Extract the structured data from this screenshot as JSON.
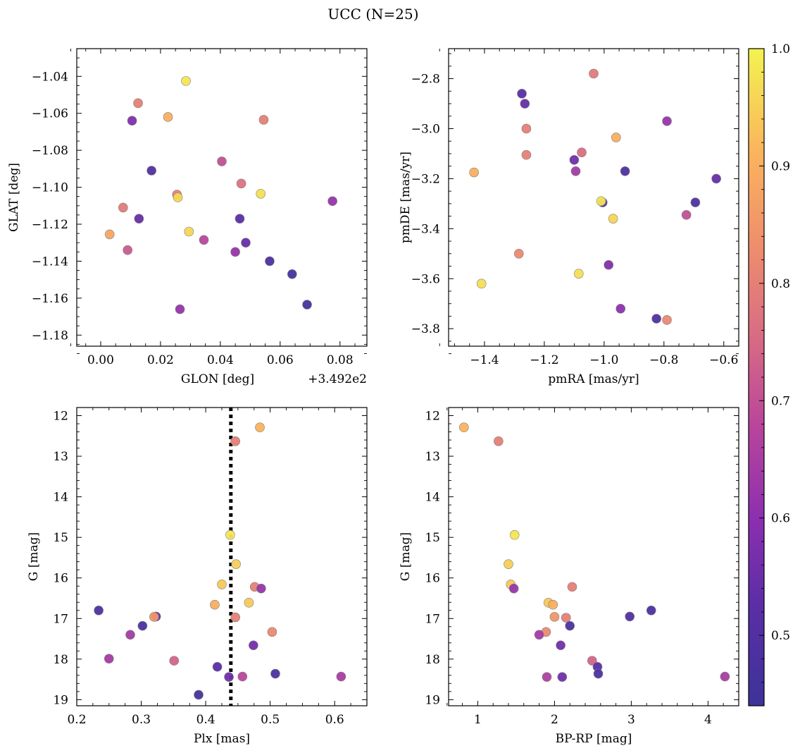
{
  "figure": {
    "title": "UCC (N=25)"
  },
  "colors": {
    "cmap_low": "#3d3399",
    "cmap_high": "#f3f350",
    "point_edge": "#7f7f7f",
    "dashed_line": "#000000"
  },
  "colorbar": {
    "min": 0.44,
    "max": 1.0,
    "ticks": [
      "0.5",
      "0.6",
      "0.7",
      "0.8",
      "0.9",
      "1.0"
    ],
    "tick_values": [
      0.5,
      0.6,
      0.7,
      0.8,
      0.9,
      1.0
    ]
  },
  "chart_data": [
    {
      "type": "scatter",
      "xlabel": "GLON [deg]",
      "ylabel": "GLAT [deg]",
      "offset_text": "+3.492e2",
      "xlim": [
        -0.008,
        0.089
      ],
      "ylim": [
        -1.186,
        -1.025
      ],
      "xticks": [
        0.0,
        0.02,
        0.04,
        0.06,
        0.08
      ],
      "xticklabels": [
        "0.00",
        "0.02",
        "0.04",
        "0.06",
        "0.08"
      ],
      "yticks": [
        -1.18,
        -1.16,
        -1.14,
        -1.12,
        -1.1,
        -1.08,
        -1.06,
        -1.04
      ],
      "yticklabels": [
        "−1.18",
        "−1.16",
        "−1.14",
        "−1.12",
        "−1.10",
        "−1.08",
        "−1.06",
        "−1.04"
      ],
      "points": [
        {
          "x": 0.0285,
          "y": -1.0425,
          "c": 0.98
        },
        {
          "x": 0.0125,
          "y": -1.0545,
          "c": 0.8
        },
        {
          "x": 0.0225,
          "y": -1.062,
          "c": 0.9
        },
        {
          "x": 0.0545,
          "y": -1.0635,
          "c": 0.8
        },
        {
          "x": 0.0105,
          "y": -1.064,
          "c": 0.58
        },
        {
          "x": 0.0405,
          "y": -1.086,
          "c": 0.7
        },
        {
          "x": 0.017,
          "y": -1.091,
          "c": 0.5
        },
        {
          "x": 0.047,
          "y": -1.098,
          "c": 0.77
        },
        {
          "x": 0.0535,
          "y": -1.1035,
          "c": 0.97
        },
        {
          "x": 0.0255,
          "y": -1.104,
          "c": 0.8
        },
        {
          "x": 0.0258,
          "y": -1.1055,
          "c": 0.96
        },
        {
          "x": 0.0775,
          "y": -1.1075,
          "c": 0.62
        },
        {
          "x": 0.0075,
          "y": -1.111,
          "c": 0.79
        },
        {
          "x": 0.0128,
          "y": -1.117,
          "c": 0.54
        },
        {
          "x": 0.0465,
          "y": -1.117,
          "c": 0.52
        },
        {
          "x": 0.0295,
          "y": -1.124,
          "c": 0.96
        },
        {
          "x": 0.003,
          "y": -1.1255,
          "c": 0.88
        },
        {
          "x": 0.0485,
          "y": -1.13,
          "c": 0.54
        },
        {
          "x": 0.0345,
          "y": -1.1285,
          "c": 0.68
        },
        {
          "x": 0.009,
          "y": -1.134,
          "c": 0.72
        },
        {
          "x": 0.045,
          "y": -1.135,
          "c": 0.62
        },
        {
          "x": 0.0565,
          "y": -1.14,
          "c": 0.48
        },
        {
          "x": 0.064,
          "y": -1.147,
          "c": 0.47
        },
        {
          "x": 0.069,
          "y": -1.1635,
          "c": 0.46
        },
        {
          "x": 0.0265,
          "y": -1.166,
          "c": 0.62
        }
      ]
    },
    {
      "type": "scatter",
      "xlabel": "pmRA [mas/yr]",
      "ylabel": "pmDE [mas/yr]",
      "xlim": [
        -1.52,
        -0.55
      ],
      "ylim": [
        -3.87,
        -2.68
      ],
      "xticks": [
        -1.4,
        -1.2,
        -1.0,
        -0.8,
        -0.6
      ],
      "xticklabels": [
        "−1.4",
        "−1.2",
        "−1.0",
        "−0.8",
        "−0.6"
      ],
      "yticks": [
        -3.8,
        -3.6,
        -3.4,
        -3.2,
        -3.0,
        -2.8
      ],
      "yticklabels": [
        "−3.8",
        "−3.6",
        "−3.4",
        "−3.2",
        "−3.0",
        "−2.8"
      ],
      "points": [
        {
          "x": -1.035,
          "y": -2.78,
          "c": 0.79
        },
        {
          "x": -1.275,
          "y": -2.86,
          "c": 0.52
        },
        {
          "x": -1.265,
          "y": -2.9,
          "c": 0.54
        },
        {
          "x": -0.79,
          "y": -2.97,
          "c": 0.62
        },
        {
          "x": -1.26,
          "y": -3.0,
          "c": 0.8
        },
        {
          "x": -0.96,
          "y": -3.035,
          "c": 0.9
        },
        {
          "x": -1.075,
          "y": -3.095,
          "c": 0.76
        },
        {
          "x": -1.26,
          "y": -3.105,
          "c": 0.8
        },
        {
          "x": -1.1,
          "y": -3.125,
          "c": 0.56
        },
        {
          "x": -1.095,
          "y": -3.17,
          "c": 0.64
        },
        {
          "x": -0.93,
          "y": -3.17,
          "c": 0.49
        },
        {
          "x": -1.435,
          "y": -3.175,
          "c": 0.9
        },
        {
          "x": -0.625,
          "y": -3.2,
          "c": 0.54
        },
        {
          "x": -1.005,
          "y": -3.295,
          "c": 0.48
        },
        {
          "x": -1.01,
          "y": -3.29,
          "c": 0.98
        },
        {
          "x": -0.695,
          "y": -3.295,
          "c": 0.49
        },
        {
          "x": -0.725,
          "y": -3.345,
          "c": 0.7
        },
        {
          "x": -0.97,
          "y": -3.36,
          "c": 0.96
        },
        {
          "x": -1.285,
          "y": -3.5,
          "c": 0.82
        },
        {
          "x": -0.985,
          "y": -3.545,
          "c": 0.58
        },
        {
          "x": -1.085,
          "y": -3.58,
          "c": 0.97
        },
        {
          "x": -1.41,
          "y": -3.62,
          "c": 0.97
        },
        {
          "x": -0.945,
          "y": -3.72,
          "c": 0.6
        },
        {
          "x": -0.825,
          "y": -3.76,
          "c": 0.5
        },
        {
          "x": -0.79,
          "y": -3.765,
          "c": 0.82
        }
      ]
    },
    {
      "type": "scatter",
      "xlabel": "Plx [mas]",
      "ylabel": "G [mag]",
      "xlim": [
        0.2,
        0.65
      ],
      "ylim": [
        19.15,
        11.8
      ],
      "xticks": [
        0.2,
        0.3,
        0.4,
        0.5,
        0.6
      ],
      "xticklabels": [
        "0.2",
        "0.3",
        "0.4",
        "0.5",
        "0.6"
      ],
      "yticks": [
        12,
        13,
        14,
        15,
        16,
        17,
        18,
        19
      ],
      "yticklabels": [
        "12",
        "13",
        "14",
        "15",
        "16",
        "17",
        "18",
        "19"
      ],
      "vline_x": 0.439,
      "points": [
        {
          "x": 0.484,
          "y": 12.29,
          "c": 0.91
        },
        {
          "x": 0.446,
          "y": 12.63,
          "c": 0.8
        },
        {
          "x": 0.438,
          "y": 14.94,
          "c": 0.98
        },
        {
          "x": 0.447,
          "y": 15.66,
          "c": 0.95
        },
        {
          "x": 0.425,
          "y": 16.16,
          "c": 0.94
        },
        {
          "x": 0.476,
          "y": 16.22,
          "c": 0.8
        },
        {
          "x": 0.486,
          "y": 16.26,
          "c": 0.62
        },
        {
          "x": 0.467,
          "y": 16.61,
          "c": 0.94
        },
        {
          "x": 0.414,
          "y": 16.66,
          "c": 0.9
        },
        {
          "x": 0.234,
          "y": 16.8,
          "c": 0.48
        },
        {
          "x": 0.323,
          "y": 16.95,
          "c": 0.54
        },
        {
          "x": 0.32,
          "y": 16.96,
          "c": 0.85
        },
        {
          "x": 0.446,
          "y": 16.97,
          "c": 0.8
        },
        {
          "x": 0.302,
          "y": 17.18,
          "c": 0.48
        },
        {
          "x": 0.503,
          "y": 17.33,
          "c": 0.82
        },
        {
          "x": 0.283,
          "y": 17.4,
          "c": 0.64
        },
        {
          "x": 0.474,
          "y": 17.66,
          "c": 0.56
        },
        {
          "x": 0.25,
          "y": 17.99,
          "c": 0.64
        },
        {
          "x": 0.351,
          "y": 18.04,
          "c": 0.74
        },
        {
          "x": 0.418,
          "y": 18.19,
          "c": 0.52
        },
        {
          "x": 0.508,
          "y": 18.36,
          "c": 0.48
        },
        {
          "x": 0.436,
          "y": 18.44,
          "c": 0.56
        },
        {
          "x": 0.457,
          "y": 18.43,
          "c": 0.68
        },
        {
          "x": 0.61,
          "y": 18.43,
          "c": 0.65
        },
        {
          "x": 0.389,
          "y": 18.88,
          "c": 0.47
        }
      ]
    },
    {
      "type": "scatter",
      "xlabel": "BP-RP [mag]",
      "ylabel": "G [mag]",
      "xlim": [
        0.62,
        4.4
      ],
      "ylim": [
        19.15,
        11.8
      ],
      "xticks": [
        1,
        2,
        3,
        4
      ],
      "xticklabels": [
        "1",
        "2",
        "3",
        "4"
      ],
      "yticks": [
        12,
        13,
        14,
        15,
        16,
        17,
        18,
        19
      ],
      "yticklabels": [
        "12",
        "13",
        "14",
        "15",
        "16",
        "17",
        "18",
        "19"
      ],
      "points": [
        {
          "x": 0.82,
          "y": 12.29,
          "c": 0.91
        },
        {
          "x": 1.27,
          "y": 12.63,
          "c": 0.8
        },
        {
          "x": 1.48,
          "y": 14.94,
          "c": 0.98
        },
        {
          "x": 1.4,
          "y": 15.66,
          "c": 0.95
        },
        {
          "x": 1.43,
          "y": 16.16,
          "c": 0.94
        },
        {
          "x": 2.23,
          "y": 16.22,
          "c": 0.8
        },
        {
          "x": 1.47,
          "y": 16.26,
          "c": 0.62
        },
        {
          "x": 1.92,
          "y": 16.61,
          "c": 0.94
        },
        {
          "x": 1.98,
          "y": 16.66,
          "c": 0.9
        },
        {
          "x": 3.26,
          "y": 16.8,
          "c": 0.48
        },
        {
          "x": 2.98,
          "y": 16.95,
          "c": 0.5
        },
        {
          "x": 2.0,
          "y": 16.96,
          "c": 0.85
        },
        {
          "x": 2.15,
          "y": 16.98,
          "c": 0.8
        },
        {
          "x": 2.2,
          "y": 17.18,
          "c": 0.48
        },
        {
          "x": 1.89,
          "y": 17.33,
          "c": 0.82
        },
        {
          "x": 1.8,
          "y": 17.4,
          "c": 0.64
        },
        {
          "x": 2.08,
          "y": 17.66,
          "c": 0.56
        },
        {
          "x": 2.49,
          "y": 18.04,
          "c": 0.74
        },
        {
          "x": 2.56,
          "y": 18.19,
          "c": 0.52
        },
        {
          "x": 2.57,
          "y": 18.36,
          "c": 0.48
        },
        {
          "x": 1.9,
          "y": 18.44,
          "c": 0.66
        },
        {
          "x": 2.1,
          "y": 18.44,
          "c": 0.56
        },
        {
          "x": 4.22,
          "y": 18.43,
          "c": 0.65
        }
      ]
    }
  ]
}
